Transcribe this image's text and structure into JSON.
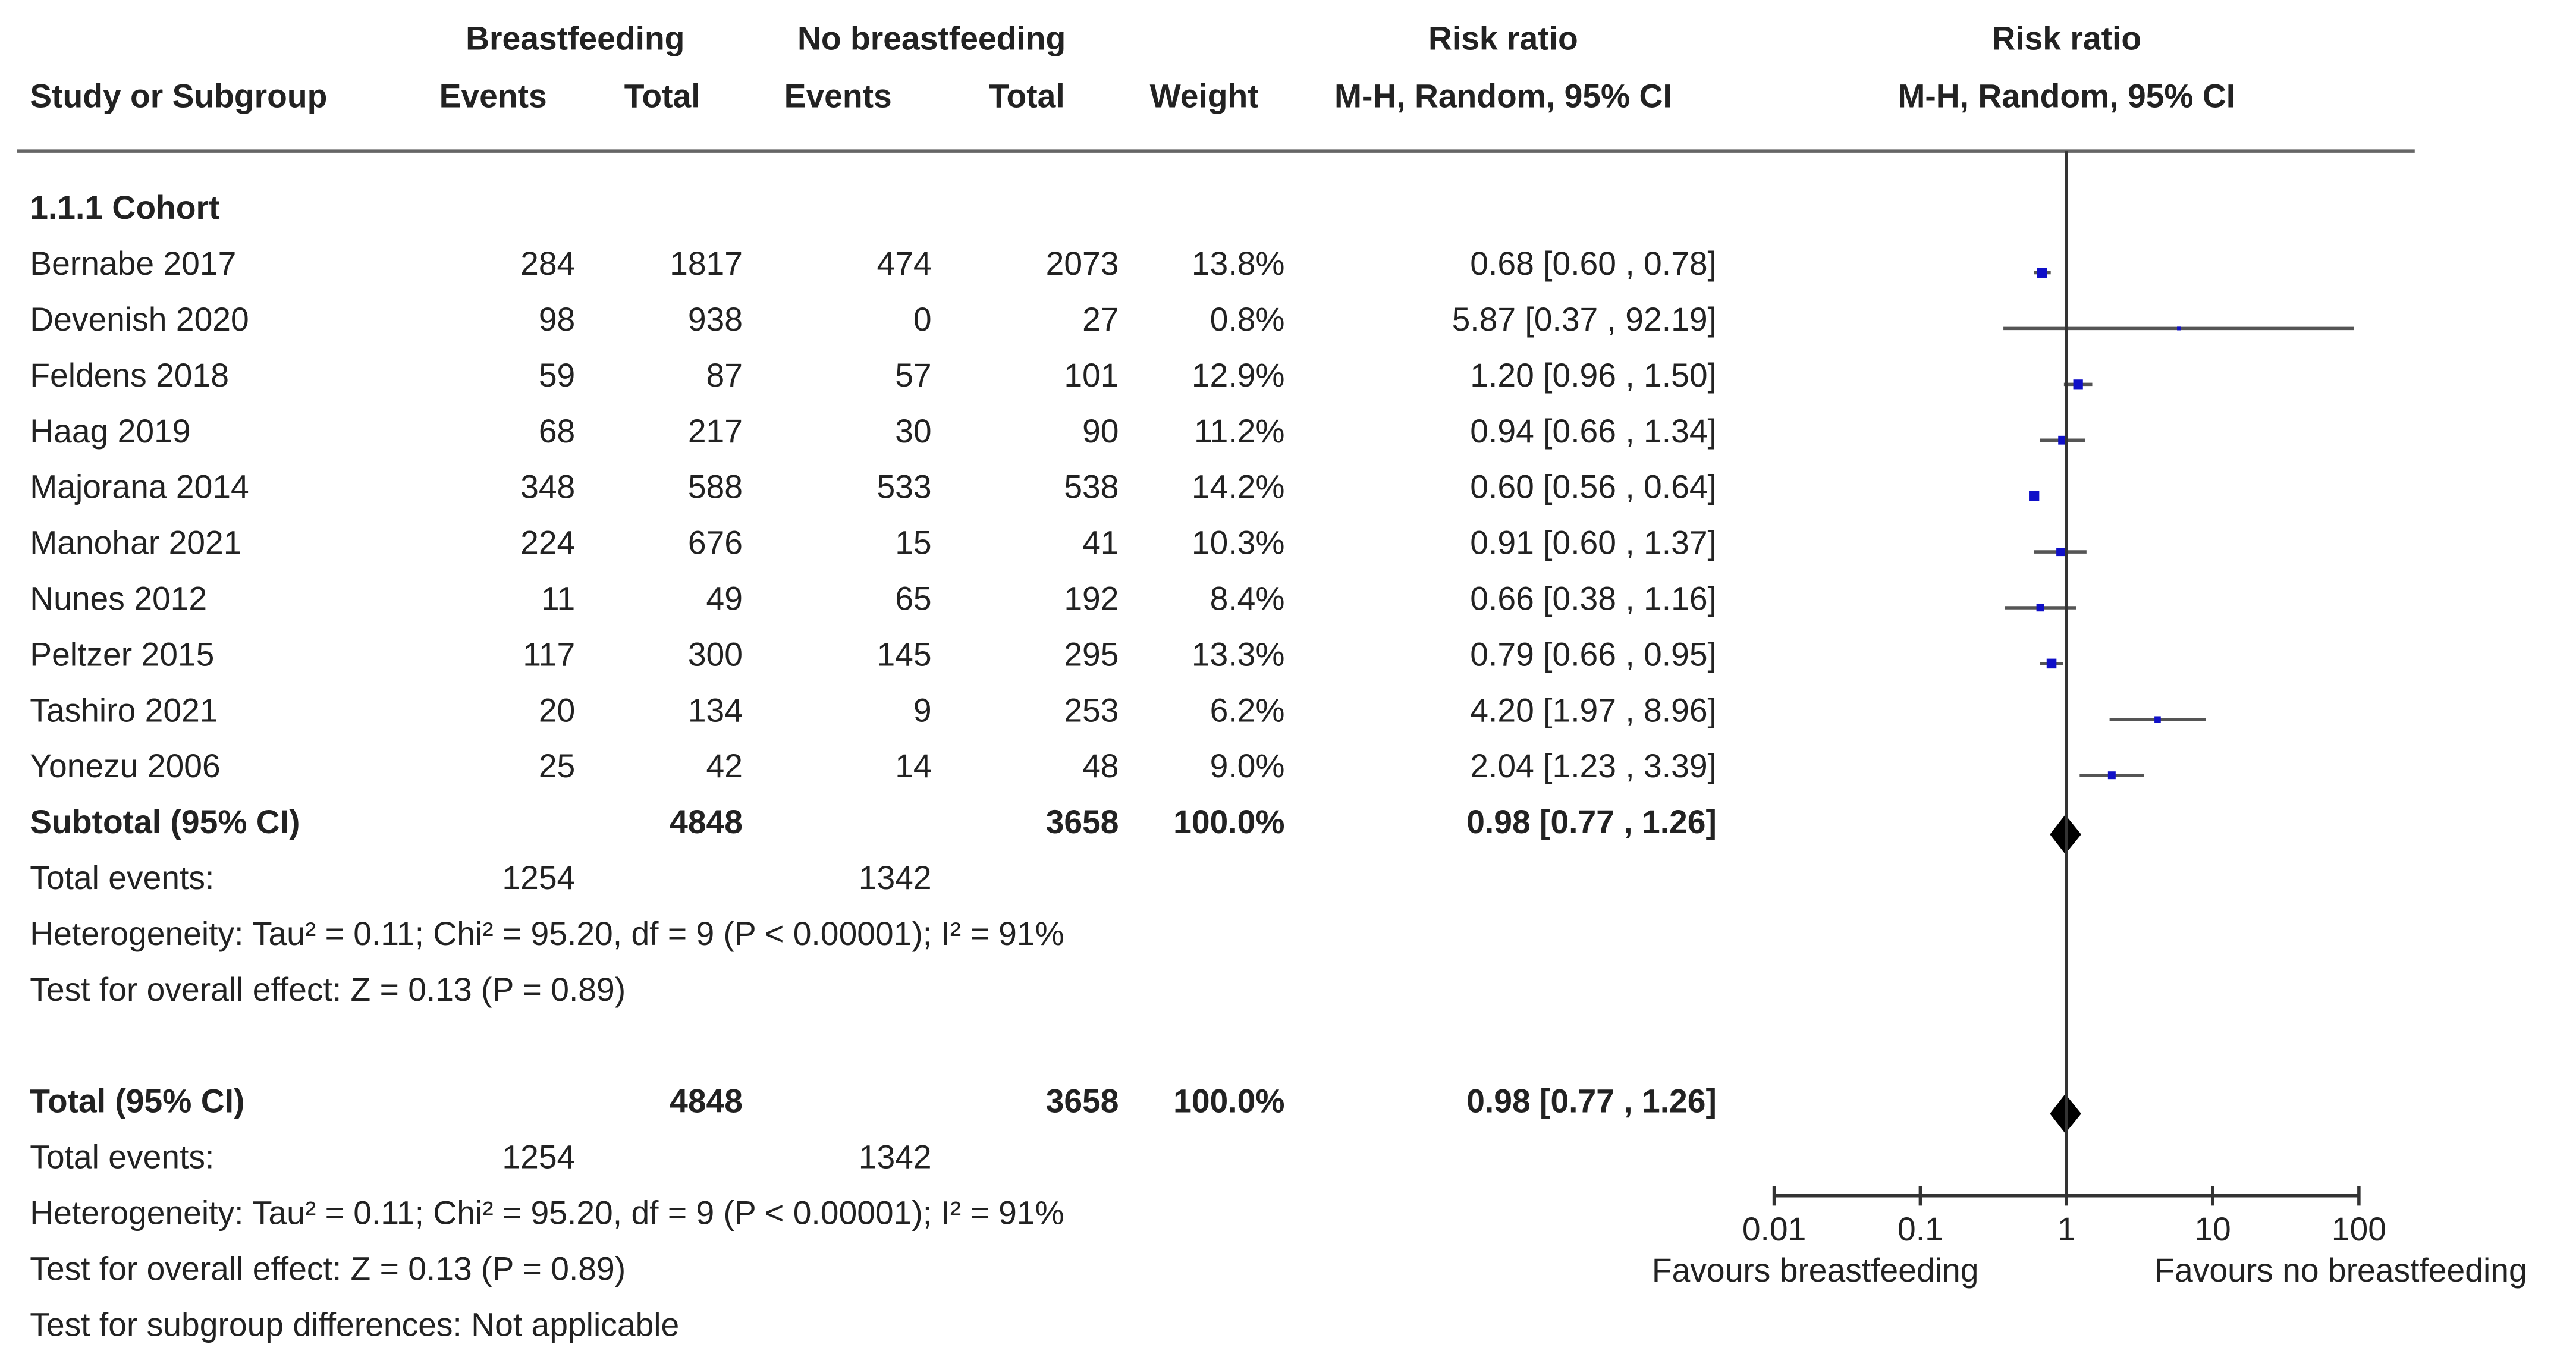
{
  "chart_data": {
    "type": "forest",
    "headers": {
      "group_bf": "Breastfeeding",
      "group_nbf": "No breastfeeding",
      "group_rr": "Risk ratio",
      "group_plot": "Risk ratio",
      "study": "Study or Subgroup",
      "bf_events": "Events",
      "bf_total": "Total",
      "nbf_events": "Events",
      "nbf_total": "Total",
      "weight": "Weight",
      "rr": "M-H, Random, 95% CI",
      "plot": "M-H, Random, 95% CI"
    },
    "subgroup": "1.1.1 Cohort",
    "studies": [
      {
        "name": "Bernabe 2017",
        "bf_events": 284,
        "bf_total": 1817,
        "nbf_events": 474,
        "nbf_total": 2073,
        "weight": 13.8,
        "weight_label": "13.8%",
        "rr": 0.68,
        "ci_low": 0.6,
        "ci_high": 0.78,
        "rr_label": "0.68 [0.60 , 0.78]"
      },
      {
        "name": "Devenish 2020",
        "bf_events": 98,
        "bf_total": 938,
        "nbf_events": 0,
        "nbf_total": 27,
        "weight": 0.8,
        "weight_label": "0.8%",
        "rr": 5.87,
        "ci_low": 0.37,
        "ci_high": 92.19,
        "rr_label": "5.87 [0.37 , 92.19]"
      },
      {
        "name": "Feldens 2018",
        "bf_events": 59,
        "bf_total": 87,
        "nbf_events": 57,
        "nbf_total": 101,
        "weight": 12.9,
        "weight_label": "12.9%",
        "rr": 1.2,
        "ci_low": 0.96,
        "ci_high": 1.5,
        "rr_label": "1.20 [0.96 , 1.50]"
      },
      {
        "name": "Haag 2019",
        "bf_events": 68,
        "bf_total": 217,
        "nbf_events": 30,
        "nbf_total": 90,
        "weight": 11.2,
        "weight_label": "11.2%",
        "rr": 0.94,
        "ci_low": 0.66,
        "ci_high": 1.34,
        "rr_label": "0.94 [0.66 , 1.34]"
      },
      {
        "name": "Majorana 2014",
        "bf_events": 348,
        "bf_total": 588,
        "nbf_events": 533,
        "nbf_total": 538,
        "weight": 14.2,
        "weight_label": "14.2%",
        "rr": 0.6,
        "ci_low": 0.56,
        "ci_high": 0.64,
        "rr_label": "0.60 [0.56 , 0.64]"
      },
      {
        "name": "Manohar 2021",
        "bf_events": 224,
        "bf_total": 676,
        "nbf_events": 15,
        "nbf_total": 41,
        "weight": 10.3,
        "weight_label": "10.3%",
        "rr": 0.91,
        "ci_low": 0.6,
        "ci_high": 1.37,
        "rr_label": "0.91 [0.60 , 1.37]"
      },
      {
        "name": "Nunes 2012",
        "bf_events": 11,
        "bf_total": 49,
        "nbf_events": 65,
        "nbf_total": 192,
        "weight": 8.4,
        "weight_label": "8.4%",
        "rr": 0.66,
        "ci_low": 0.38,
        "ci_high": 1.16,
        "rr_label": "0.66 [0.38 , 1.16]"
      },
      {
        "name": "Peltzer 2015",
        "bf_events": 117,
        "bf_total": 300,
        "nbf_events": 145,
        "nbf_total": 295,
        "weight": 13.3,
        "weight_label": "13.3%",
        "rr": 0.79,
        "ci_low": 0.66,
        "ci_high": 0.95,
        "rr_label": "0.79 [0.66 , 0.95]"
      },
      {
        "name": "Tashiro 2021",
        "bf_events": 20,
        "bf_total": 134,
        "nbf_events": 9,
        "nbf_total": 253,
        "weight": 6.2,
        "weight_label": "6.2%",
        "rr": 4.2,
        "ci_low": 1.97,
        "ci_high": 8.96,
        "rr_label": "4.20 [1.97 , 8.96]"
      },
      {
        "name": "Yonezu 2006",
        "bf_events": 25,
        "bf_total": 42,
        "nbf_events": 14,
        "nbf_total": 48,
        "weight": 9.0,
        "weight_label": "9.0%",
        "rr": 2.04,
        "ci_low": 1.23,
        "ci_high": 3.39,
        "rr_label": "2.04 [1.23 , 3.39]"
      }
    ],
    "pooled": [
      {
        "name": "Subtotal (95% CI)",
        "bf_total": 4848,
        "nbf_total": 3658,
        "weight": 100,
        "weight_label": "100.0%",
        "rr": 0.98,
        "ci_low": 0.77,
        "ci_high": 1.26,
        "rr_label": "0.98 [0.77 , 1.26]",
        "events_label": "Total events:",
        "bf_events": 1254,
        "nbf_events": 1342,
        "heterogeneity": "Heterogeneity: Tau² = 0.11; Chi² = 95.20, df = 9 (P < 0.00001); I² = 91%",
        "overall": "Test for overall effect: Z = 0.13 (P = 0.89)"
      },
      {
        "name": "Total (95% CI)",
        "bf_total": 4848,
        "nbf_total": 3658,
        "weight": 100,
        "weight_label": "100.0%",
        "rr": 0.98,
        "ci_low": 0.77,
        "ci_high": 1.26,
        "rr_label": "0.98 [0.77 , 1.26]",
        "events_label": "Total events:",
        "bf_events": 1254,
        "nbf_events": 1342,
        "heterogeneity": "Heterogeneity: Tau² = 0.11; Chi² = 95.20, df = 9 (P < 0.00001); I² = 91%",
        "overall": "Test for overall effect: Z = 0.13 (P = 0.89)"
      }
    ],
    "subgroup_test": "Test for subgroup differences: Not applicable",
    "xscale": "log",
    "xlim": [
      0.01,
      100
    ],
    "xticks": [
      0.01,
      0.1,
      1,
      10,
      100
    ],
    "xlabel_left": "Favours breastfeeding",
    "xlabel_right": "Favours no breastfeeding",
    "study_color": "#1010c8",
    "pooled_color": "#000000",
    "line_color": "#555555"
  }
}
